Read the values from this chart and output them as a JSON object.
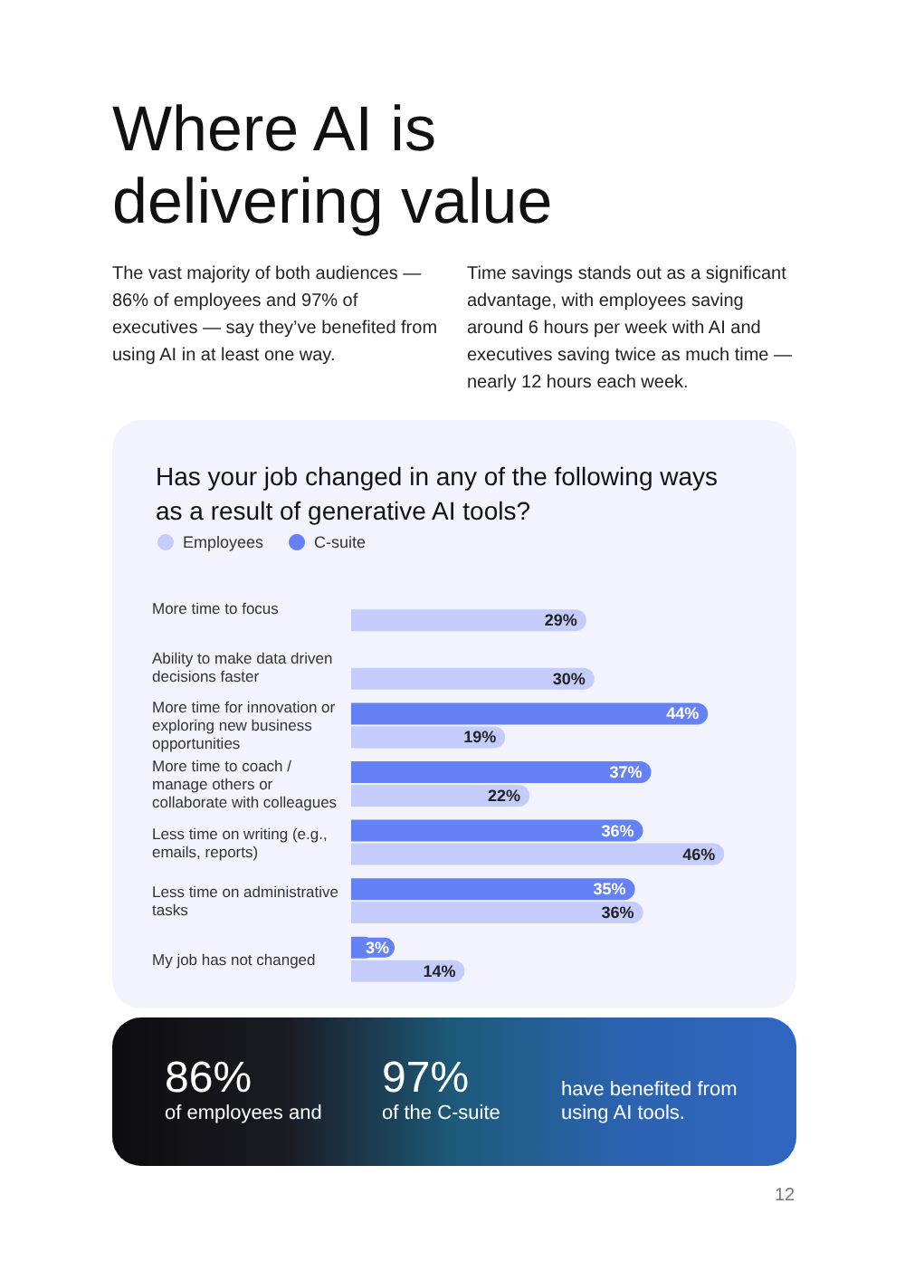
{
  "chart_data": {
    "type": "bar",
    "orientation": "horizontal",
    "title": "Where AI is delivering value",
    "subtitle": "Has your job changed in any of the following ways as a result of generative AI tools?",
    "annotations": [
      "The vast majority of both audiences — 86% of employees and 97% of executives — say they’ve benefited from using AI in at least one way.",
      "Time savings stands out as a significant advantage, with employees saving around 6 hours per week with AI and executives saving twice as much time — nearly 12 hours each week.",
      "86%",
      "of employees and",
      "97%",
      "of the C-suite",
      "have benefited from using AI tools.",
      "12"
    ],
    "categories": [
      "More time to focus",
      "Ability to make data driven decisions faster",
      "More time for innovation or exploring new business opportunities",
      "More time to coach / manage others or collaborate with colleagues",
      "Less time on writing (e.g., emails, reports)",
      "Less time on administrative tasks",
      "My job has not changed"
    ],
    "series": [
      {
        "name": "Employees",
        "color": "#c3ccfa",
        "values": [
          29,
          30,
          19,
          22,
          46,
          36,
          14
        ],
        "value_labels": [
          "29%",
          "30%",
          "19%",
          "22%",
          "46%",
          "36%",
          "14%"
        ]
      },
      {
        "name": "C-suite",
        "color": "#6581f6",
        "values": [
          null,
          null,
          44,
          37,
          36,
          35,
          3
        ],
        "value_labels": [
          null,
          null,
          "44%",
          "37%",
          "36%",
          "35%",
          "3%"
        ]
      }
    ],
    "legend": "top left",
    "grid": false
  }
}
